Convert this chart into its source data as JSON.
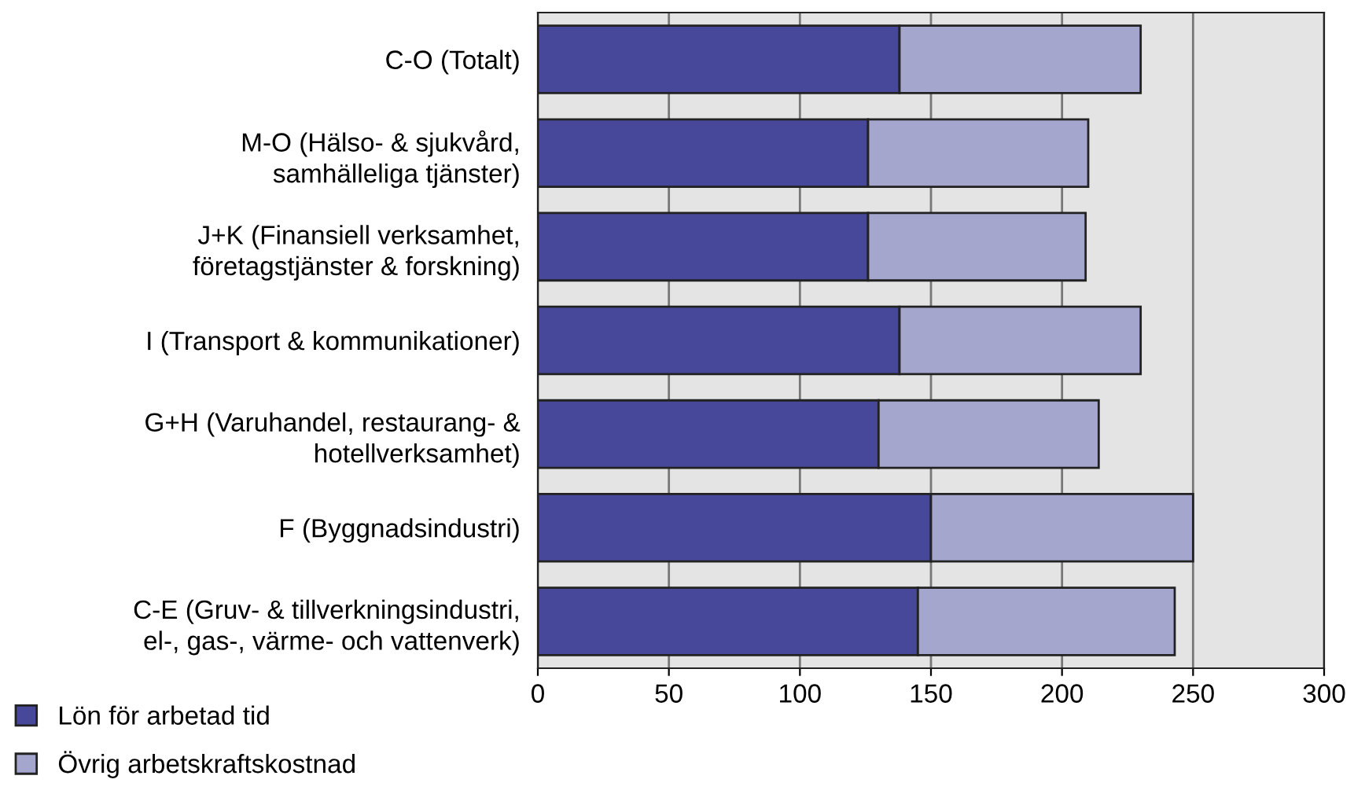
{
  "chart_data": {
    "type": "bar",
    "orientation": "horizontal",
    "stacked": true,
    "categories": [
      "C-O (Totalt)",
      "M-O (Hälso- & sjukvård,\nsamhälleliga tjänster)",
      "J+K (Finansiell verksamhet,\nföretagstjänster & forskning)",
      "I (Transport & kommunikationer)",
      "G+H (Varuhandel, restaurang- &\nhotellverksamhet)",
      "F (Byggnadsindustri)",
      "C-E (Gruv- & tillverkningsindustri,\nel-, gas-, värme- och vattenverk)"
    ],
    "series": [
      {
        "name": "Lön för arbetad tid",
        "color": "#474899",
        "values": [
          138,
          126,
          126,
          138,
          130,
          150,
          145
        ]
      },
      {
        "name": "Övrig arbetskraftskostnad",
        "color": "#a5a6ce",
        "values": [
          92,
          84,
          83,
          92,
          84,
          100,
          98
        ]
      }
    ],
    "xlim": [
      0,
      300
    ],
    "xticks": [
      0,
      50,
      100,
      150,
      200,
      250,
      300
    ],
    "grid": "x",
    "legend": "bottom left"
  }
}
